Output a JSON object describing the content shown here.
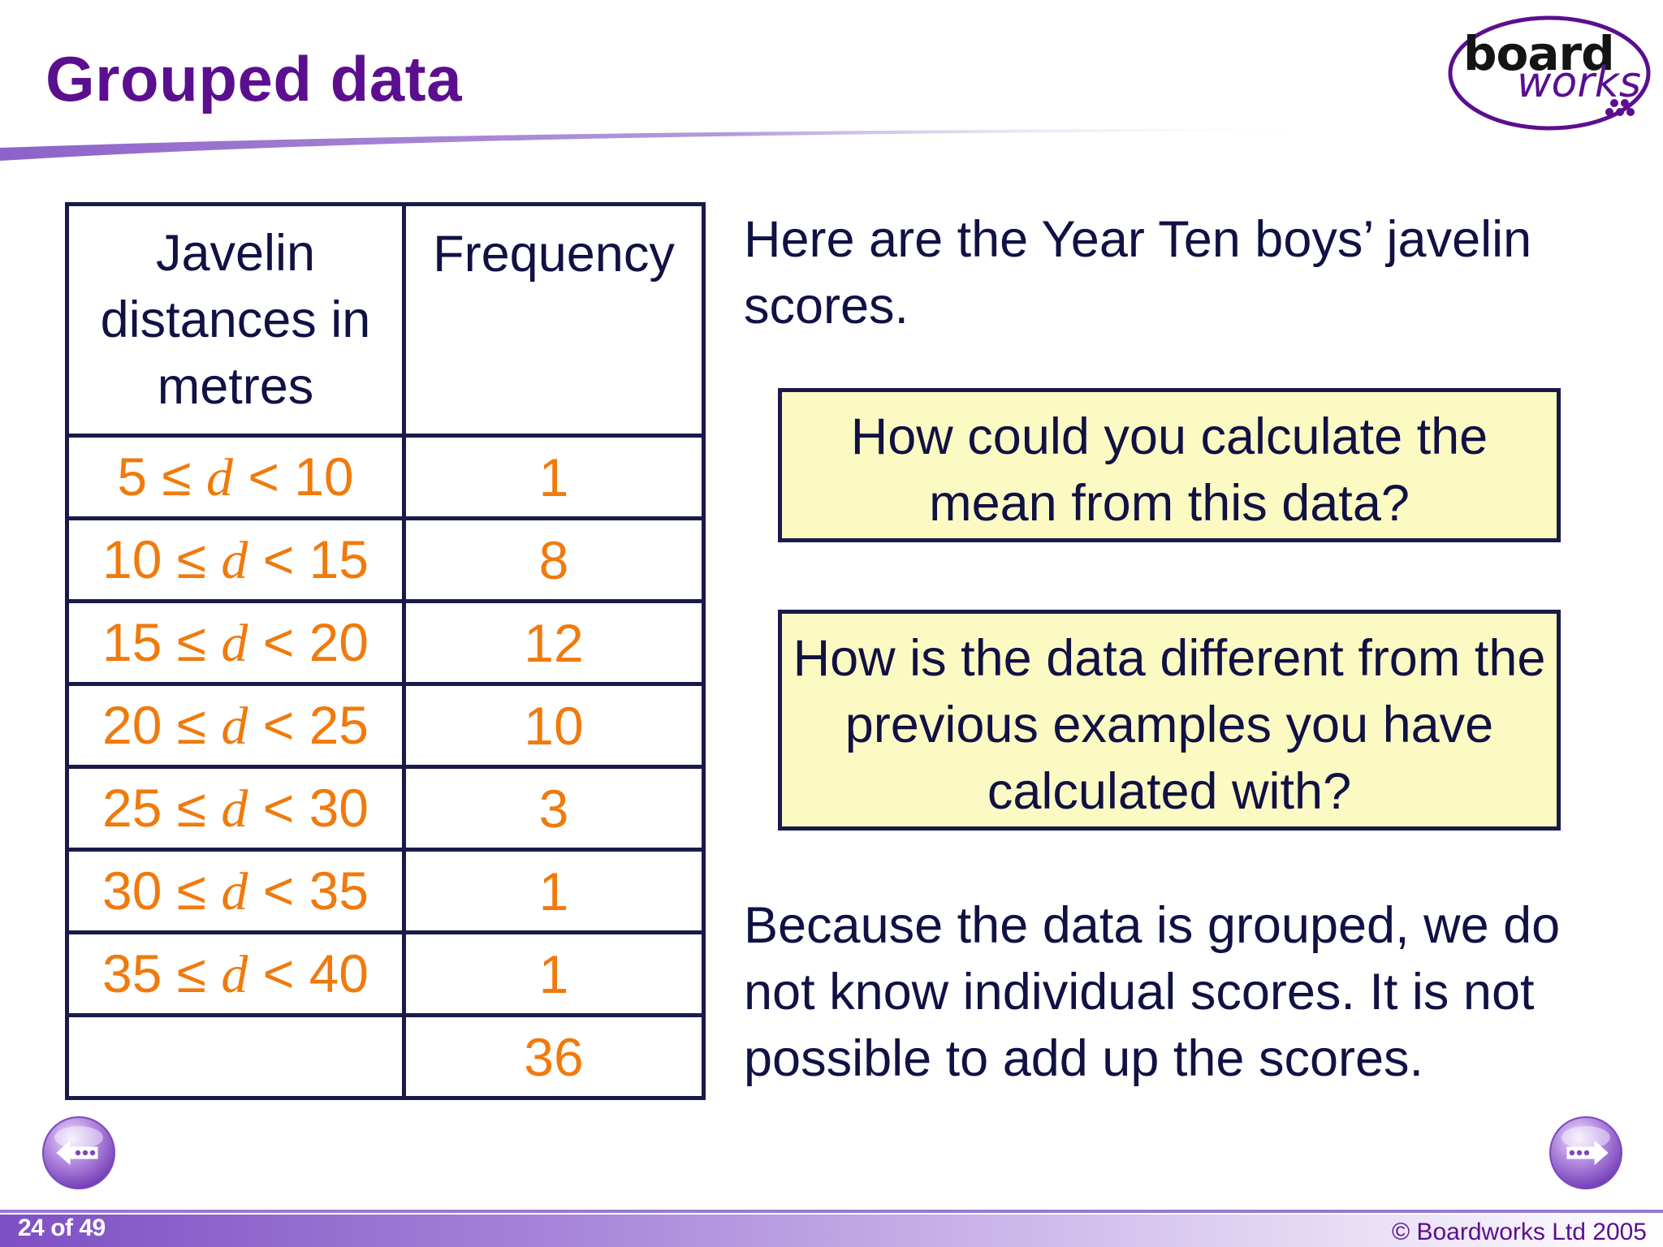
{
  "header": {
    "title": "Grouped data",
    "logo": {
      "word1": "board",
      "word2": "works"
    }
  },
  "table": {
    "headers": {
      "distance_lines": [
        "Javelin",
        "distances in",
        "metres"
      ],
      "frequency": "Frequency"
    },
    "rows": [
      {
        "lower": "5",
        "upper": "10",
        "frequency": "1"
      },
      {
        "lower": "10",
        "upper": "15",
        "frequency": "8"
      },
      {
        "lower": "15",
        "upper": "20",
        "frequency": "12"
      },
      {
        "lower": "20",
        "upper": "25",
        "frequency": "10"
      },
      {
        "lower": "25",
        "upper": "30",
        "frequency": "3"
      },
      {
        "lower": "30",
        "upper": "35",
        "frequency": "1"
      },
      {
        "lower": "35",
        "upper": "40",
        "frequency": "1"
      }
    ],
    "total": {
      "label": "",
      "frequency": "36"
    },
    "interval_symbols": {
      "le": "≤",
      "variable": "d",
      "lt": "<"
    }
  },
  "intro_text": "Here are the Year Ten boys’ javelin scores.",
  "questions": [
    "How could you calculate the mean from this data?",
    "How is the data different from the previous examples you have calculated with?"
  ],
  "answer_text": "Because the data is grouped, we do not know individual scores. It is not possible to add up the scores.",
  "navigation": {
    "back_icon": "back-arrow-icon",
    "forward_icon": "forward-arrow-icon"
  },
  "footer": {
    "slide_counter": "24 of 49",
    "copyright": "© Boardworks Ltd 2005"
  },
  "colors": {
    "title": "#5b0f8f",
    "text": "#111144",
    "interval_text": "#f07a0c",
    "box_fill": "#fcfac3",
    "border": "#1a1a4a",
    "footer_bar": "#8a5cc8"
  }
}
